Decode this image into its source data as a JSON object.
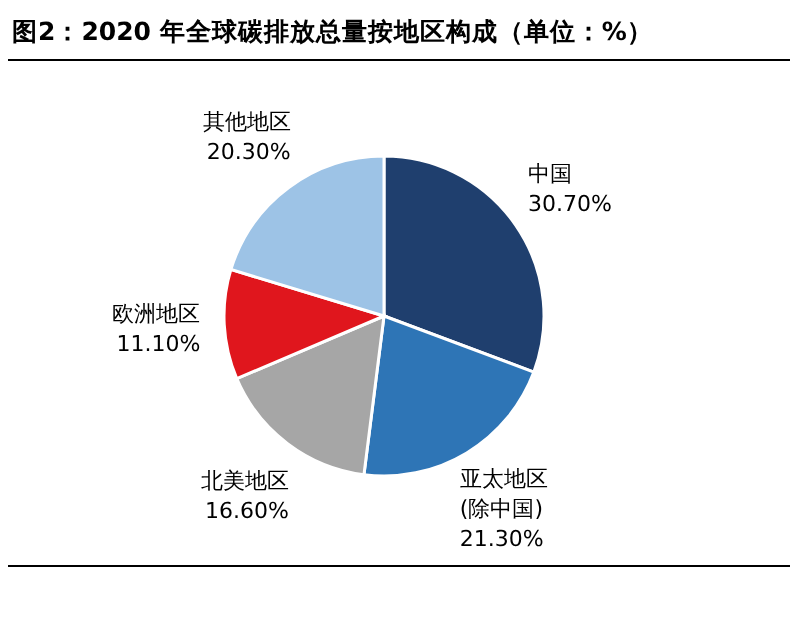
{
  "chart_data": {
    "type": "pie",
    "title": "图2：2020 年全球碳排放总量按地区构成（单位：%）",
    "categories": [
      "中国",
      "亚太地区\n(除中国)",
      "北美地区",
      "欧洲地区",
      "其他地区"
    ],
    "values": [
      30.7,
      21.3,
      16.6,
      11.1,
      20.3
    ],
    "value_labels": [
      "30.70%",
      "21.30%",
      "16.60%",
      "11.10%",
      "20.30%"
    ],
    "colors": [
      "#1f3f6e",
      "#2e75b6",
      "#a6a6a6",
      "#e0161d",
      "#9dc3e6"
    ]
  }
}
